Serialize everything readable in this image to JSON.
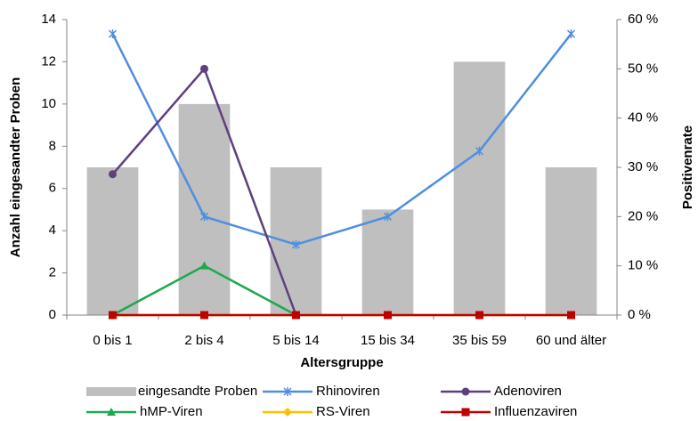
{
  "chart_data": {
    "type": "combo",
    "x_label": "Altersgruppe",
    "y_label": "Anzahl eingesandter Proben",
    "y2_label": "Positivenrate",
    "categories": [
      "0 bis 1",
      "2 bis 4",
      "5 bis 14",
      "15 bis 34",
      "35 bis 59",
      "60 und älter"
    ],
    "ylim": [
      0,
      14
    ],
    "yticks": [
      0,
      2,
      4,
      6,
      8,
      10,
      12,
      14
    ],
    "y2lim": [
      0,
      60
    ],
    "y2ticks": [
      {
        "value": 0,
        "label": "0 %"
      },
      {
        "value": 10,
        "label": "10 %"
      },
      {
        "value": 20,
        "label": "20 %"
      },
      {
        "value": 30,
        "label": "30 %"
      },
      {
        "value": 40,
        "label": "40 %"
      },
      {
        "value": 50,
        "label": "50 %"
      },
      {
        "value": 60,
        "label": "60 %"
      }
    ],
    "grid": false,
    "legend": "bottom",
    "series": [
      {
        "name": "eingesandte Proben",
        "kind": "bar",
        "color": "#bfbfbf",
        "values": [
          7,
          10,
          7,
          5,
          12,
          7
        ]
      },
      {
        "name": "Rhinoviren",
        "kind": "line",
        "marker": "star",
        "axis": "y2",
        "color": "#4f8fdf",
        "values": [
          57.1,
          20,
          14.3,
          20,
          33.3,
          57.1
        ]
      },
      {
        "name": "Adenoviren",
        "kind": "line",
        "marker": "circle",
        "axis": "y2",
        "color": "#5f3f7f",
        "values": [
          28.6,
          50,
          0,
          null,
          null,
          null
        ]
      },
      {
        "name": "hMP-Viren",
        "kind": "line",
        "marker": "triangle",
        "axis": "y2",
        "color": "#1fa84f",
        "values": [
          0,
          10,
          0,
          null,
          null,
          null
        ]
      },
      {
        "name": "RS-Viren",
        "kind": "line",
        "marker": "diamond",
        "axis": "y2",
        "color": "#ffc000",
        "values": [
          0,
          0,
          0,
          0,
          0,
          0
        ]
      },
      {
        "name": "Influenzaviren",
        "kind": "line",
        "marker": "square",
        "axis": "y2",
        "color": "#c00000",
        "values": [
          0,
          0,
          0,
          0,
          0,
          0
        ]
      }
    ]
  }
}
